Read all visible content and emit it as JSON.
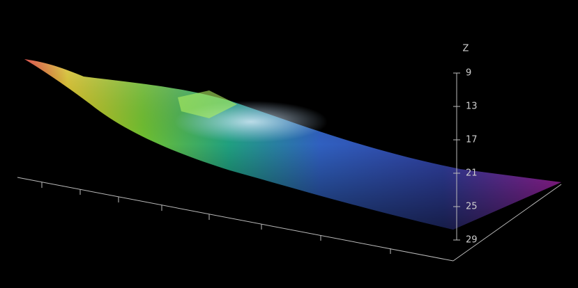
{
  "z_axis": {
    "label": "Z",
    "ticks": [
      "9",
      "13",
      "17",
      "21",
      "25",
      "29"
    ]
  }
}
